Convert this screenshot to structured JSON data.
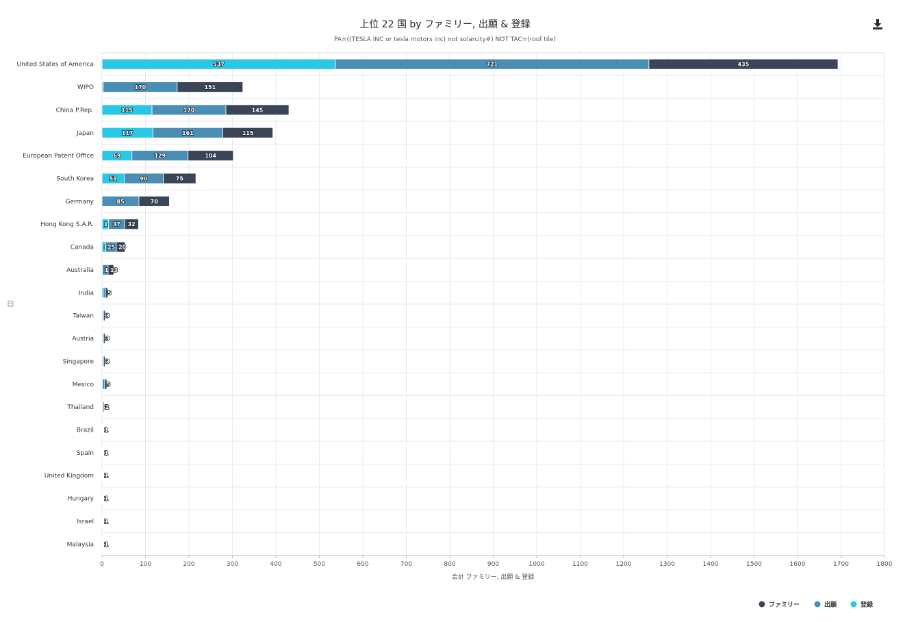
{
  "chart_data": {
    "type": "bar",
    "orientation": "horizontal",
    "stacked": true,
    "title": "上位 22 国 by ファミリー, 出願 & 登録",
    "subtitle": "PA=((TESLA INC or tesla motors inc) not solarcity#) NOT TAC=(roof tile)",
    "xlabel": "合計 ファミリー, 出願 & 登録",
    "ylabel": "",
    "xlim": [
      0,
      1800
    ],
    "xticks": [
      "0",
      "100",
      "200",
      "300",
      "400",
      "500",
      "600",
      "700",
      "800",
      "900",
      "1000",
      "1100",
      "1200",
      "1300",
      "1400",
      "1500",
      "1600",
      "1700",
      "1800"
    ],
    "grid": true,
    "legend_position": "bottom-right",
    "categories": [
      "United States of America",
      "WIPO",
      "China P.Rep.",
      "Japan",
      "European Patent Office",
      "South Korea",
      "Germany",
      "Hong Kong S.A.R.",
      "Canada",
      "Australia",
      "India",
      "Taiwan",
      "Austria",
      "Singapore",
      "Mexico",
      "Thailand",
      "Brazil",
      "Spain",
      "United Kingdom",
      "Hungary",
      "Israel",
      "Malaysia"
    ],
    "series": [
      {
        "name": "登録",
        "color": "#29c8e6",
        "values": [
          537,
          3,
          115,
          117,
          69,
          51,
          0,
          15,
          8,
          1,
          3,
          1,
          1,
          1,
          1,
          1,
          0,
          0,
          0,
          0,
          0,
          0
        ]
      },
      {
        "name": "出願",
        "color": "#4a8db5",
        "values": [
          721,
          170,
          170,
          161,
          129,
          90,
          85,
          37,
          25,
          13,
          5,
          3,
          3,
          3,
          5,
          2,
          1,
          1,
          1,
          1,
          1,
          1
        ]
      },
      {
        "name": "ファミリー",
        "color": "#3a4657",
        "values": [
          435,
          151,
          145,
          115,
          104,
          75,
          70,
          32,
          20,
          13,
          5,
          3,
          3,
          3,
          5,
          2,
          1,
          1,
          1,
          1,
          1,
          1
        ]
      }
    ],
    "legend_order": [
      "ファミリー",
      "出願",
      "登録"
    ]
  },
  "toolbar": {
    "download_icon": "download-icon"
  }
}
